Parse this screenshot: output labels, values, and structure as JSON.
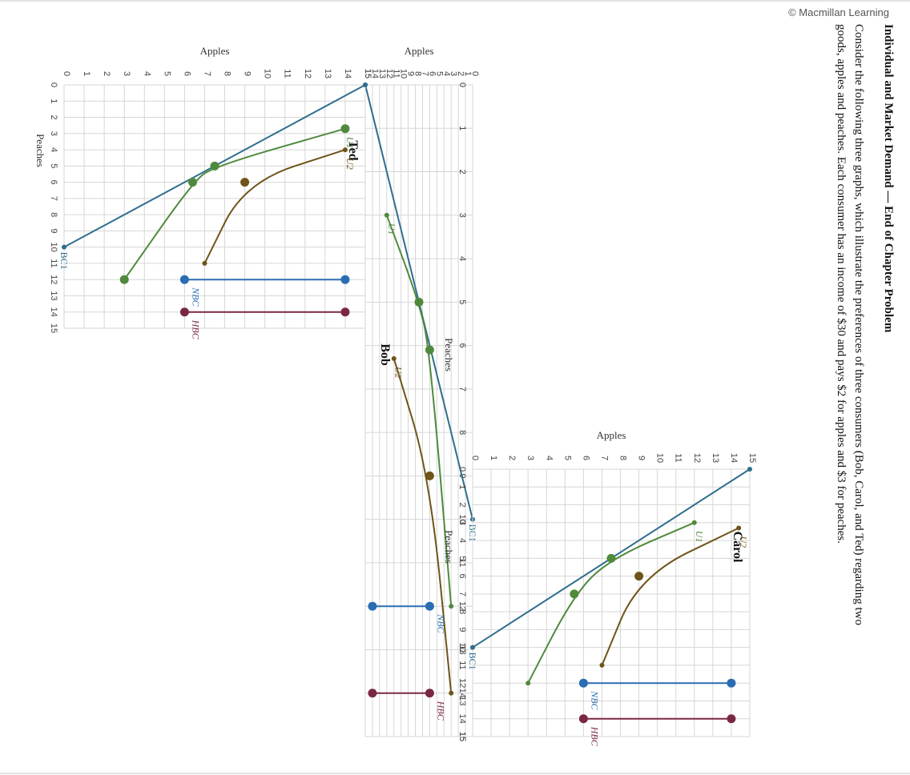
{
  "copyright": "© Macmillan Learning",
  "problem": {
    "title": "Individual and Market Demand — End of Chapter Problem",
    "text_line1": "Consider the following three graphs, which illustrate the preferences of three consumers (Bob, Carol, and Ted) regarding two",
    "text_line2": "goods, apples and peaches. Each consumer has an income of $30 and pays $2 for apples and $3 for peaches."
  },
  "colors": {
    "budget": "#2e6e8e",
    "u1": "#4f8a3c",
    "u1_point": "#4f8a3c",
    "u2": "#6e5418",
    "nbc": "#2a6db3",
    "hbc": "#7a2746",
    "grid": "#d6d6d6"
  },
  "chart_data": [
    {
      "type": "line",
      "title": "Bob",
      "xlabel": "Peaches",
      "ylabel": "Apples",
      "xlim": [
        0,
        15
      ],
      "ylim": [
        0,
        15
      ],
      "xticks": [
        "0",
        "1",
        "2",
        "3",
        "4",
        "5",
        "6",
        "7",
        "8",
        "9",
        "10",
        "11",
        "12",
        "13",
        "14",
        "15"
      ],
      "yticks": [
        "0",
        "1",
        "2",
        "3",
        "4",
        "5",
        "6",
        "7",
        "8",
        "9",
        "10",
        "11",
        "12",
        "13",
        "14",
        "15"
      ],
      "budget_line": {
        "label": "BC1",
        "points": [
          [
            0,
            15
          ],
          [
            10,
            0
          ]
        ]
      },
      "indifference_curves": [
        {
          "name": "U1",
          "points": [
            [
              3,
              12
            ],
            [
              5,
              7.5
            ],
            [
              6.1,
              6
            ],
            [
              12,
              3
            ]
          ],
          "markers": [
            [
              5,
              7.5
            ],
            [
              6.1,
              6
            ]
          ]
        },
        {
          "name": "U2",
          "points": [
            [
              6.3,
              11
            ],
            [
              9,
              6
            ],
            [
              14,
              3
            ]
          ],
          "markers": [
            [
              9,
              6
            ]
          ]
        }
      ],
      "segments": [
        {
          "label": "NBC",
          "points": [
            [
              12,
              6
            ],
            [
              12,
              14
            ]
          ]
        },
        {
          "label": "HBC",
          "points": [
            [
              14,
              6
            ],
            [
              14,
              14
            ]
          ]
        }
      ]
    },
    {
      "type": "line",
      "title": "Carol",
      "xlabel": "Peaches",
      "ylabel": "Apples",
      "xlim": [
        0,
        15
      ],
      "ylim": [
        0,
        15
      ],
      "xticks": [
        "0",
        "1",
        "2",
        "3",
        "4",
        "5",
        "6",
        "7",
        "8",
        "9",
        "10",
        "11",
        "12",
        "13",
        "14",
        "15"
      ],
      "yticks": [
        "0",
        "1",
        "2",
        "3",
        "4",
        "5",
        "6",
        "7",
        "8",
        "9",
        "10",
        "11",
        "12",
        "13",
        "14",
        "15"
      ],
      "budget_line": {
        "label": "BC1",
        "points": [
          [
            0,
            15
          ],
          [
            10,
            0
          ]
        ]
      },
      "indifference_curves": [
        {
          "name": "U1",
          "points": [
            [
              3,
              12
            ],
            [
              5,
              7.5
            ],
            [
              7,
              5.5
            ],
            [
              12,
              3
            ]
          ],
          "markers": [
            [
              5,
              7.5
            ],
            [
              7,
              5.5
            ]
          ]
        },
        {
          "name": "U2",
          "points": [
            [
              3.3,
              14.4
            ],
            [
              6,
              9
            ],
            [
              11,
              7
            ]
          ],
          "markers": [
            [
              6,
              9
            ]
          ]
        }
      ],
      "segments": [
        {
          "label": "NBC",
          "points": [
            [
              12,
              6
            ],
            [
              12,
              14
            ]
          ]
        },
        {
          "label": "HBC",
          "points": [
            [
              14,
              6
            ],
            [
              14,
              14
            ]
          ]
        }
      ]
    },
    {
      "type": "line",
      "title": "Ted",
      "xlabel": "Peaches",
      "ylabel": "Apples",
      "xlim": [
        0,
        15
      ],
      "ylim": [
        0,
        15
      ],
      "xticks": [
        "0",
        "1",
        "2",
        "3",
        "4",
        "5",
        "6",
        "7",
        "8",
        "9",
        "10",
        "11",
        "12",
        "13",
        "14",
        "15"
      ],
      "yticks": [
        "0",
        "1",
        "2",
        "3",
        "4",
        "5",
        "6",
        "7",
        "8",
        "9",
        "10",
        "11",
        "12",
        "13",
        "14",
        "15"
      ],
      "budget_line": {
        "label": "BC1",
        "points": [
          [
            0,
            15
          ],
          [
            10,
            0
          ]
        ]
      },
      "indifference_curves": [
        {
          "name": "U1",
          "points": [
            [
              2.7,
              14
            ],
            [
              5,
              7.5
            ],
            [
              6,
              6.4
            ],
            [
              12,
              3
            ]
          ],
          "markers": [
            [
              2.7,
              14
            ],
            [
              5,
              7.5
            ],
            [
              6,
              6.4
            ],
            [
              12,
              3
            ]
          ]
        },
        {
          "name": "U2",
          "points": [
            [
              4,
              14
            ],
            [
              6,
              9
            ],
            [
              11,
              7
            ]
          ],
          "markers": [
            [
              6,
              9
            ]
          ]
        }
      ],
      "segments": [
        {
          "label": "NBC",
          "points": [
            [
              12,
              6
            ],
            [
              12,
              14
            ]
          ]
        },
        {
          "label": "HBC",
          "points": [
            [
              14,
              6
            ],
            [
              14,
              14
            ]
          ]
        }
      ]
    }
  ]
}
